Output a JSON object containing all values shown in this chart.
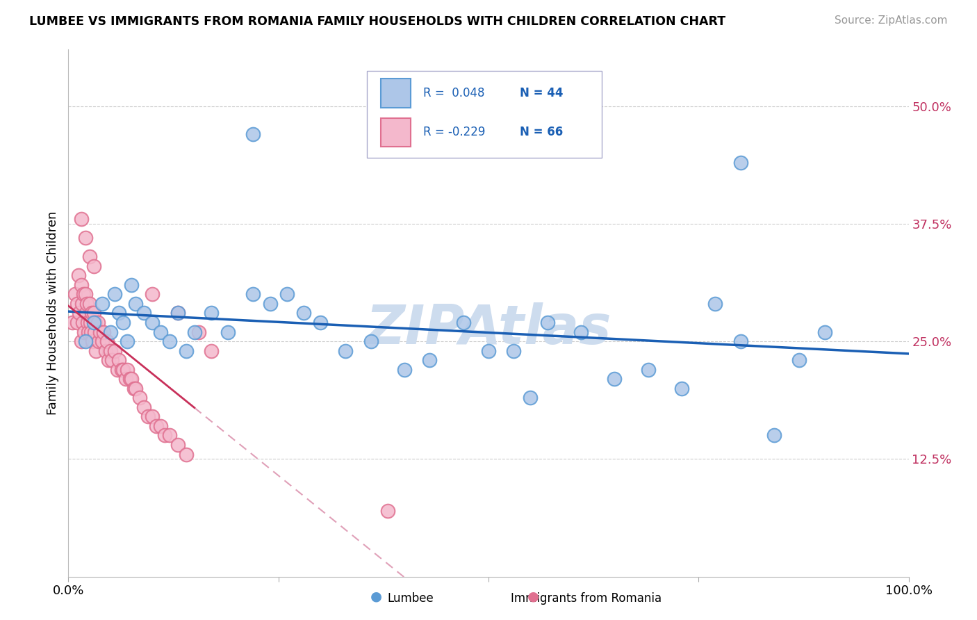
{
  "title": "LUMBEE VS IMMIGRANTS FROM ROMANIA FAMILY HOUSEHOLDS WITH CHILDREN CORRELATION CHART",
  "source": "Source: ZipAtlas.com",
  "ylabel": "Family Households with Children",
  "ytick_values": [
    0.125,
    0.25,
    0.375,
    0.5
  ],
  "ytick_labels": [
    "12.5%",
    "25.0%",
    "37.5%",
    "50.0%"
  ],
  "legend_r_lumbee": "R =  0.048",
  "legend_n_lumbee": "N = 44",
  "legend_r_romania": "R = -0.229",
  "legend_n_romania": "N = 66",
  "lumbee_color": "#adc6e8",
  "lumbee_edge": "#5b9bd5",
  "romania_color": "#f4b8cc",
  "romania_edge": "#e07090",
  "trend_lumbee_color": "#1a5fb4",
  "trend_romania_solid_color": "#c8305a",
  "trend_romania_dash_color": "#e0a0b8",
  "watermark_color": "#cddcee",
  "xlim": [
    0.0,
    1.0
  ],
  "ylim": [
    0.0,
    0.56
  ],
  "lumbee_x": [
    0.02,
    0.03,
    0.04,
    0.05,
    0.055,
    0.06,
    0.065,
    0.07,
    0.075,
    0.08,
    0.09,
    0.1,
    0.11,
    0.12,
    0.13,
    0.14,
    0.15,
    0.17,
    0.19,
    0.22,
    0.24,
    0.26,
    0.28,
    0.3,
    0.33,
    0.36,
    0.4,
    0.43,
    0.47,
    0.5,
    0.53,
    0.57,
    0.61,
    0.65,
    0.69,
    0.73,
    0.77,
    0.8,
    0.84,
    0.87,
    0.9,
    0.22,
    0.8,
    0.55
  ],
  "lumbee_y": [
    0.25,
    0.27,
    0.29,
    0.26,
    0.3,
    0.28,
    0.27,
    0.25,
    0.31,
    0.29,
    0.28,
    0.27,
    0.26,
    0.25,
    0.28,
    0.24,
    0.26,
    0.28,
    0.26,
    0.3,
    0.29,
    0.3,
    0.28,
    0.27,
    0.24,
    0.25,
    0.22,
    0.23,
    0.27,
    0.24,
    0.24,
    0.27,
    0.26,
    0.21,
    0.22,
    0.2,
    0.29,
    0.25,
    0.15,
    0.23,
    0.26,
    0.47,
    0.44,
    0.19
  ],
  "romania_x": [
    0.005,
    0.008,
    0.01,
    0.01,
    0.012,
    0.013,
    0.015,
    0.015,
    0.016,
    0.017,
    0.018,
    0.019,
    0.02,
    0.021,
    0.022,
    0.023,
    0.024,
    0.025,
    0.026,
    0.027,
    0.028,
    0.029,
    0.03,
    0.031,
    0.032,
    0.033,
    0.035,
    0.036,
    0.038,
    0.04,
    0.042,
    0.044,
    0.046,
    0.048,
    0.05,
    0.052,
    0.055,
    0.058,
    0.06,
    0.063,
    0.065,
    0.068,
    0.07,
    0.073,
    0.075,
    0.078,
    0.08,
    0.085,
    0.09,
    0.095,
    0.1,
    0.105,
    0.11,
    0.115,
    0.12,
    0.13,
    0.14,
    0.015,
    0.02,
    0.025,
    0.03,
    0.1,
    0.13,
    0.155,
    0.17,
    0.38
  ],
  "romania_y": [
    0.27,
    0.3,
    0.27,
    0.29,
    0.32,
    0.28,
    0.31,
    0.25,
    0.29,
    0.27,
    0.3,
    0.26,
    0.3,
    0.28,
    0.29,
    0.27,
    0.26,
    0.29,
    0.27,
    0.26,
    0.28,
    0.25,
    0.28,
    0.26,
    0.27,
    0.24,
    0.27,
    0.25,
    0.26,
    0.25,
    0.26,
    0.24,
    0.25,
    0.23,
    0.24,
    0.23,
    0.24,
    0.22,
    0.23,
    0.22,
    0.22,
    0.21,
    0.22,
    0.21,
    0.21,
    0.2,
    0.2,
    0.19,
    0.18,
    0.17,
    0.17,
    0.16,
    0.16,
    0.15,
    0.15,
    0.14,
    0.13,
    0.38,
    0.36,
    0.34,
    0.33,
    0.3,
    0.28,
    0.26,
    0.24,
    0.07
  ]
}
